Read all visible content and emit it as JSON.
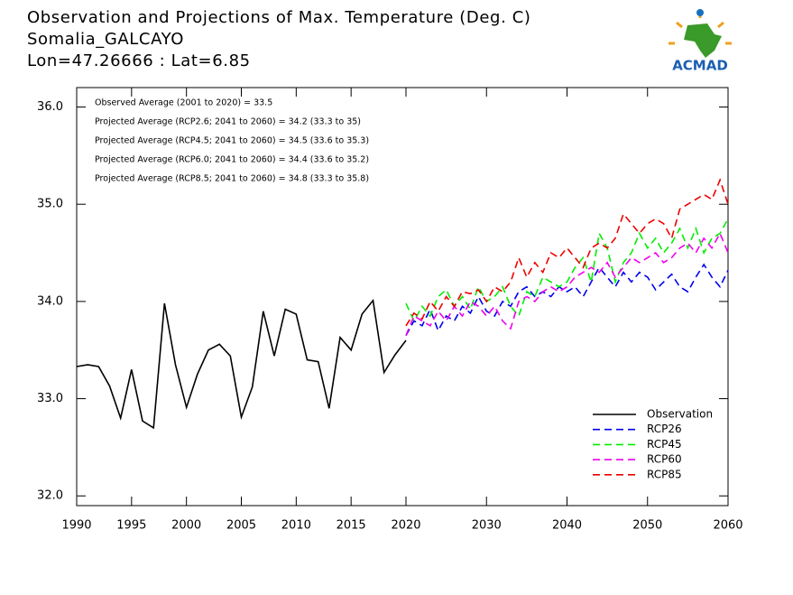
{
  "chart_data": {
    "type": "line",
    "title": "Observation and Projections of Max. Temperature (Deg. C)",
    "subtitle": "Somalia_GALCAYO",
    "location": "Lon=47.26666 : Lat=6.85",
    "annotations": [
      "Observed Average (2001 to 2020) = 33.5",
      "Projected Average (RCP2.6; 2041 to 2060) = 34.2 (33.3 to 35)",
      "Projected Average (RCP4.5; 2041 to 2060) = 34.5 (33.6 to 35.3)",
      "Projected Average (RCP6.0; 2041 to 2060) = 34.4 (33.6 to 35.2)",
      "Projected Average (RCP8.5; 2041 to 2060) = 34.8 (33.3 to 35.8)"
    ],
    "x": [
      1990,
      1991,
      1992,
      1993,
      1994,
      1995,
      1996,
      1997,
      1998,
      1999,
      2000,
      2001,
      2002,
      2003,
      2004,
      2005,
      2006,
      2007,
      2008,
      2009,
      2010,
      2011,
      2012,
      2013,
      2014,
      2015,
      2016,
      2017,
      2018,
      2019,
      2020,
      2021,
      2022,
      2023,
      2024,
      2025,
      2026,
      2027,
      2028,
      2029,
      2030,
      2031,
      2032,
      2033,
      2034,
      2035,
      2036,
      2037,
      2038,
      2039,
      2040,
      2041,
      2042,
      2043,
      2044,
      2045,
      2046,
      2047,
      2048,
      2049,
      2050,
      2051,
      2052,
      2053,
      2054,
      2055,
      2056,
      2057,
      2058,
      2059,
      2060
    ],
    "xlim": [
      1990,
      2060
    ],
    "xbreak": 2020,
    "xticks": [
      1990,
      1995,
      2000,
      2005,
      2010,
      2015,
      2020,
      2030,
      2040,
      2050,
      2060
    ],
    "ylim": [
      31.9,
      36.2
    ],
    "yticks": [
      {
        "value": 32,
        "label": "32.0"
      },
      {
        "value": 33,
        "label": "33.0"
      },
      {
        "value": 34,
        "label": "34.0"
      },
      {
        "value": 35,
        "label": "35.0"
      },
      {
        "value": 36,
        "label": "36.0"
      }
    ],
    "legend": "lower right",
    "series": [
      {
        "name": "Observation",
        "color": "#000000",
        "dashed": false,
        "values": [
          33.33,
          33.35,
          33.33,
          33.13,
          32.8,
          33.3,
          32.77,
          32.7,
          33.98,
          33.35,
          32.91,
          33.25,
          33.5,
          33.56,
          33.44,
          32.81,
          33.12,
          33.9,
          33.44,
          33.92,
          33.87,
          33.4,
          33.38,
          32.9,
          33.63,
          33.5,
          33.87,
          34.01,
          33.27,
          33.45,
          33.6,
          null,
          null,
          null,
          null,
          null,
          null,
          null,
          null,
          null,
          null,
          null,
          null,
          null,
          null,
          null,
          null,
          null,
          null,
          null,
          null,
          null,
          null,
          null,
          null,
          null,
          null,
          null,
          null,
          null,
          null,
          null,
          null,
          null,
          null,
          null,
          null,
          null,
          null,
          null,
          null
        ]
      },
      {
        "name": "RCP26",
        "color": "#0000ee",
        "dashed": true,
        "values": [
          null,
          null,
          null,
          null,
          null,
          null,
          null,
          null,
          null,
          null,
          null,
          null,
          null,
          null,
          null,
          null,
          null,
          null,
          null,
          null,
          null,
          null,
          null,
          null,
          null,
          null,
          null,
          null,
          null,
          null,
          33.65,
          33.8,
          33.75,
          33.92,
          33.7,
          33.85,
          33.8,
          33.95,
          33.88,
          34.05,
          33.9,
          33.85,
          34.0,
          33.95,
          34.1,
          34.15,
          34.05,
          34.1,
          34.05,
          34.15,
          34.1,
          34.15,
          34.05,
          34.2,
          34.35,
          34.25,
          34.15,
          34.3,
          34.2,
          34.3,
          34.25,
          34.12,
          34.2,
          34.28,
          34.15,
          34.1,
          34.25,
          34.38,
          34.25,
          34.15,
          34.32
        ]
      },
      {
        "name": "RCP45",
        "color": "#00ee00",
        "dashed": true,
        "values": [
          null,
          null,
          null,
          null,
          null,
          null,
          null,
          null,
          null,
          null,
          null,
          null,
          null,
          null,
          null,
          null,
          null,
          null,
          null,
          null,
          null,
          null,
          null,
          null,
          null,
          null,
          null,
          null,
          null,
          null,
          33.98,
          33.8,
          33.95,
          33.85,
          34.05,
          34.12,
          33.95,
          34.05,
          33.92,
          34.15,
          34.0,
          34.05,
          34.15,
          33.95,
          33.85,
          34.1,
          34.05,
          34.25,
          34.2,
          34.15,
          34.2,
          34.35,
          34.45,
          34.2,
          34.7,
          34.55,
          34.2,
          34.4,
          34.5,
          34.7,
          34.55,
          34.65,
          34.5,
          34.6,
          34.75,
          34.55,
          34.75,
          34.5,
          34.65,
          34.7,
          34.85
        ]
      },
      {
        "name": "RCP60",
        "color": "#ee00ee",
        "dashed": true,
        "values": [
          null,
          null,
          null,
          null,
          null,
          null,
          null,
          null,
          null,
          null,
          null,
          null,
          null,
          null,
          null,
          null,
          null,
          null,
          null,
          null,
          null,
          null,
          null,
          null,
          null,
          null,
          null,
          null,
          null,
          null,
          33.65,
          33.85,
          33.8,
          33.75,
          33.9,
          33.8,
          33.95,
          33.85,
          34.0,
          33.95,
          33.85,
          33.95,
          33.8,
          33.72,
          34.0,
          34.05,
          34.0,
          34.1,
          34.15,
          34.1,
          34.15,
          34.25,
          34.3,
          34.35,
          34.3,
          34.4,
          34.25,
          34.35,
          34.45,
          34.4,
          34.45,
          34.5,
          34.4,
          34.45,
          34.55,
          34.6,
          34.5,
          34.65,
          34.55,
          34.7,
          34.5
        ]
      },
      {
        "name": "RCP85",
        "color": "#ee0000",
        "dashed": true,
        "values": [
          null,
          null,
          null,
          null,
          null,
          null,
          null,
          null,
          null,
          null,
          null,
          null,
          null,
          null,
          null,
          null,
          null,
          null,
          null,
          null,
          null,
          null,
          null,
          null,
          null,
          null,
          null,
          null,
          null,
          null,
          33.75,
          33.88,
          33.82,
          34.0,
          33.9,
          34.05,
          33.95,
          34.1,
          34.08,
          34.12,
          34.0,
          34.15,
          34.1,
          34.2,
          34.45,
          34.25,
          34.4,
          34.3,
          34.5,
          34.45,
          34.55,
          34.45,
          34.35,
          34.55,
          34.6,
          34.55,
          34.65,
          34.9,
          34.8,
          34.7,
          34.8,
          34.85,
          34.8,
          34.65,
          34.95,
          35.0,
          35.05,
          35.1,
          35.05,
          35.25,
          35.0
        ]
      }
    ]
  },
  "logo": {
    "text": "ACMAD"
  }
}
